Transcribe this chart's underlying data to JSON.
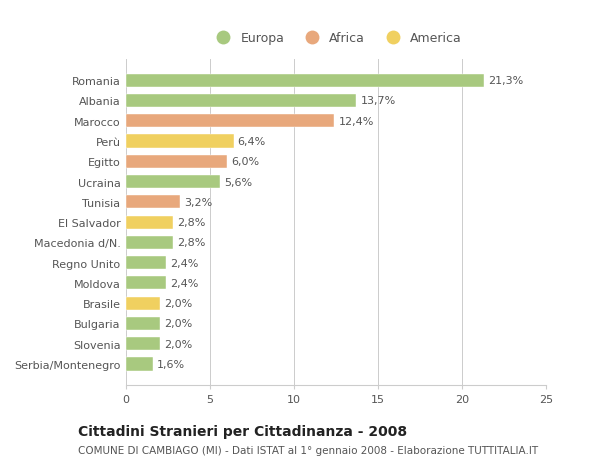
{
  "categories": [
    "Romania",
    "Albania",
    "Marocco",
    "Perù",
    "Egitto",
    "Ucraina",
    "Tunisia",
    "El Salvador",
    "Macedonia d/N.",
    "Regno Unito",
    "Moldova",
    "Brasile",
    "Bulgaria",
    "Slovenia",
    "Serbia/Montenegro"
  ],
  "values": [
    21.3,
    13.7,
    12.4,
    6.4,
    6.0,
    5.6,
    3.2,
    2.8,
    2.8,
    2.4,
    2.4,
    2.0,
    2.0,
    2.0,
    1.6
  ],
  "labels": [
    "21,3%",
    "13,7%",
    "12,4%",
    "6,4%",
    "6,0%",
    "5,6%",
    "3,2%",
    "2,8%",
    "2,8%",
    "2,4%",
    "2,4%",
    "2,0%",
    "2,0%",
    "2,0%",
    "1,6%"
  ],
  "continents": [
    "Europa",
    "Europa",
    "Africa",
    "America",
    "Africa",
    "Europa",
    "Africa",
    "America",
    "Europa",
    "Europa",
    "Europa",
    "America",
    "Europa",
    "Europa",
    "Europa"
  ],
  "colors": {
    "Europa": "#a8c97f",
    "Africa": "#e8a87c",
    "America": "#f0d060"
  },
  "legend_order": [
    "Europa",
    "Africa",
    "America"
  ],
  "legend_colors": [
    "#a8c97f",
    "#e8a87c",
    "#f0d060"
  ],
  "legend_labels": [
    "Europa",
    "Africa",
    "America"
  ],
  "xlim": [
    0,
    25
  ],
  "xticks": [
    0,
    5,
    10,
    15,
    20,
    25
  ],
  "title": "Cittadini Stranieri per Cittadinanza - 2008",
  "subtitle": "COMUNE DI CAMBIAGO (MI) - Dati ISTAT al 1° gennaio 2008 - Elaborazione TUTTITALIA.IT",
  "background_color": "#ffffff",
  "bar_edge_color": "#ffffff",
  "grid_color": "#cccccc",
  "text_color": "#555555",
  "label_fontsize": 8.0,
  "tick_fontsize": 8.0,
  "title_fontsize": 10,
  "subtitle_fontsize": 7.5
}
